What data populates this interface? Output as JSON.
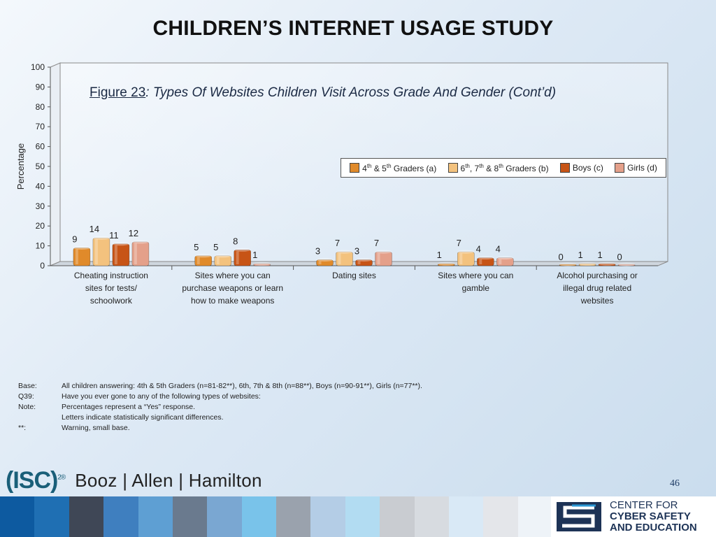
{
  "header": {
    "title": "CHILDREN’S INTERNET USAGE STUDY"
  },
  "figure": {
    "prefix": "Figure 23",
    "rest": ": Types Of Websites Children Visit Across Grade And Gender (Cont’d)"
  },
  "chart_data": {
    "type": "bar",
    "title": "Figure 23: Types Of Websites Children Visit Across Grade And Gender (Cont’d)",
    "ylabel": "Percentage",
    "xlabel": "",
    "ylim": [
      0,
      100
    ],
    "yticks": [
      0,
      10,
      20,
      30,
      40,
      50,
      60,
      70,
      80,
      90,
      100
    ],
    "grid": false,
    "legend_position": "top-right",
    "categories": [
      "Cheating instruction sites for tests/ schoolwork",
      "Sites where you can purchase weapons or learn how to make weapons",
      "Dating sites",
      "Sites where you can gamble",
      "Alcohol purchasing or illegal drug related websites"
    ],
    "category_lines": [
      [
        "Cheating instruction",
        "sites for tests/",
        "schoolwork"
      ],
      [
        "Sites where you can",
        "purchase weapons or learn",
        "how to make weapons"
      ],
      [
        "Dating sites"
      ],
      [
        "Sites where you can",
        "gamble"
      ],
      [
        "Alcohol purchasing or",
        "illegal drug related",
        "websites"
      ]
    ],
    "series": [
      {
        "name": "4th & 5th Graders (a)",
        "color": "#e08a2a",
        "values": [
          9,
          5,
          3,
          1,
          0
        ]
      },
      {
        "name": "6th, 7th & 8th Graders (b)",
        "color": "#f3c27e",
        "values": [
          14,
          5,
          7,
          7,
          1
        ]
      },
      {
        "name": "Boys (c)",
        "color": "#c75416",
        "values": [
          11,
          8,
          3,
          4,
          1
        ]
      },
      {
        "name": "Girls (d)",
        "color": "#e4a08a",
        "values": [
          12,
          1,
          7,
          4,
          0
        ]
      }
    ]
  },
  "legend": {
    "a": {
      "base": "4",
      "sup": "th",
      "rest1": " & 5",
      "sup2": "th",
      "rest2": " Graders (a)"
    },
    "b": {
      "base": "6",
      "sup": "th",
      "rest1": ", 7",
      "sup2": "th",
      "rest2": " & 8",
      "sup3": "th",
      "rest3": " Graders (b)"
    },
    "c": "Boys (c)",
    "d": "Girls (d)"
  },
  "notes": [
    {
      "key": "Base:",
      "value": "All children answering: 4th & 5th Graders (n=81-82**), 6th, 7th & 8th (n=88**), Boys (n=90-91**), Girls (n=77**)."
    },
    {
      "key": "Q39:",
      "value": "Have you ever gone to any of the following types of websites:"
    },
    {
      "key": "Note:",
      "value": "Percentages represent a “Yes” response."
    },
    {
      "key": "",
      "value": "Letters indicate statistically significant differences."
    },
    {
      "key": "**:",
      "value": "Warning, small base."
    }
  ],
  "footer": {
    "isc": "(ISC)",
    "isc_sup": "2®",
    "booz": "Booz | Allen | Hamilton",
    "page_number": "46",
    "ccse_line1": "CENTER FOR",
    "ccse_line2": "CYBER SAFETY",
    "ccse_line3": "AND EDUCATION",
    "strip_colors": [
      "#0d5aa0",
      "#1f6fb3",
      "#3f4756",
      "#3f7fbf",
      "#5e9fd3",
      "#6a7a8e",
      "#7aa7d2",
      "#79c3ea",
      "#9aa2ad",
      "#b4cde6",
      "#b2dcf2",
      "#c9ccd1",
      "#d7dbe0",
      "#d9e9f6",
      "#e4e6ea",
      "#eef3f8"
    ]
  }
}
